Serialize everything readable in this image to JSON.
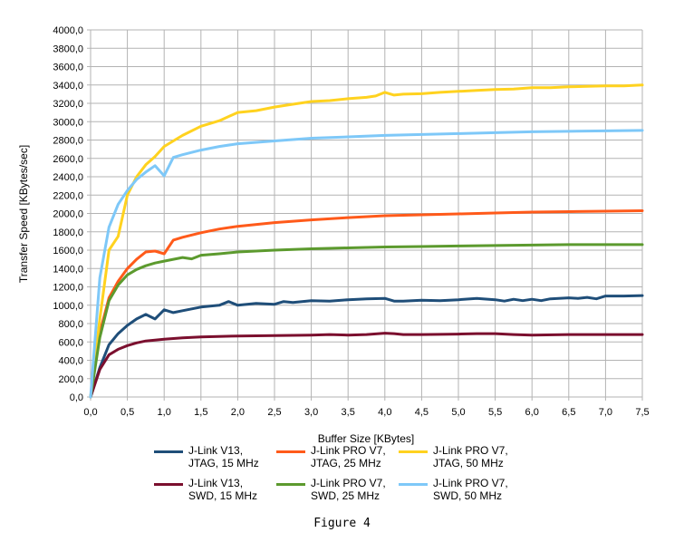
{
  "chart_data": {
    "type": "line",
    "xlabel": "Buffer Size [KBytes]",
    "ylabel": "Transfer Speed [KBytes/sec]",
    "xlim": [
      0,
      7.5
    ],
    "ylim": [
      0,
      4000
    ],
    "xticks": [
      0,
      0.5,
      1.0,
      1.5,
      2.0,
      2.5,
      3.0,
      3.5,
      4.0,
      4.5,
      5.0,
      5.5,
      6.0,
      6.5,
      7.0,
      7.5
    ],
    "xtick_labels": [
      "0,0",
      "0,5",
      "1,0",
      "1,5",
      "2,0",
      "2,5",
      "3,0",
      "3,5",
      "4,0",
      "4,5",
      "5,0",
      "5,5",
      "6,0",
      "6,5",
      "7,0",
      "7,5"
    ],
    "yticks": [
      0,
      200,
      400,
      600,
      800,
      1000,
      1200,
      1400,
      1600,
      1800,
      2000,
      2200,
      2400,
      2600,
      2800,
      3000,
      3200,
      3400,
      3600,
      3800,
      4000
    ],
    "ytick_labels": [
      "0,0",
      "200,0",
      "400,0",
      "600,0",
      "800,0",
      "1000,0",
      "1200,0",
      "1400,0",
      "1600,0",
      "1800,0",
      "2000,0",
      "2200,0",
      "2400,0",
      "2600,0",
      "2800,0",
      "3000,0",
      "3200,0",
      "3400,0",
      "3600,0",
      "3800,0",
      "4000,0"
    ],
    "grid": true,
    "legend_position": "bottom",
    "series": [
      {
        "name": "J-Link V13,\nJTAG, 15 MHz",
        "color": "#1f4e79",
        "points": [
          [
            0,
            0
          ],
          [
            0.125,
            320
          ],
          [
            0.25,
            570
          ],
          [
            0.375,
            690
          ],
          [
            0.5,
            780
          ],
          [
            0.625,
            850
          ],
          [
            0.75,
            900
          ],
          [
            0.875,
            850
          ],
          [
            1.0,
            950
          ],
          [
            1.125,
            920
          ],
          [
            1.25,
            940
          ],
          [
            1.5,
            980
          ],
          [
            1.75,
            1000
          ],
          [
            1.875,
            1040
          ],
          [
            2.0,
            1000
          ],
          [
            2.25,
            1020
          ],
          [
            2.5,
            1010
          ],
          [
            2.625,
            1040
          ],
          [
            2.75,
            1030
          ],
          [
            3.0,
            1050
          ],
          [
            3.25,
            1045
          ],
          [
            3.5,
            1060
          ],
          [
            3.75,
            1070
          ],
          [
            4.0,
            1075
          ],
          [
            4.125,
            1045
          ],
          [
            4.25,
            1045
          ],
          [
            4.5,
            1055
          ],
          [
            4.75,
            1050
          ],
          [
            5.0,
            1060
          ],
          [
            5.25,
            1075
          ],
          [
            5.5,
            1060
          ],
          [
            5.625,
            1045
          ],
          [
            5.75,
            1065
          ],
          [
            5.875,
            1050
          ],
          [
            6.0,
            1065
          ],
          [
            6.125,
            1050
          ],
          [
            6.25,
            1070
          ],
          [
            6.5,
            1080
          ],
          [
            6.625,
            1075
          ],
          [
            6.75,
            1085
          ],
          [
            6.875,
            1070
          ],
          [
            7.0,
            1100
          ],
          [
            7.25,
            1100
          ],
          [
            7.5,
            1105
          ]
        ]
      },
      {
        "name": "J-Link PRO V7,\nJTAG, 25 MHz",
        "color": "#ff5a1a",
        "points": [
          [
            0,
            0
          ],
          [
            0.125,
            700
          ],
          [
            0.25,
            1080
          ],
          [
            0.375,
            1260
          ],
          [
            0.5,
            1400
          ],
          [
            0.625,
            1500
          ],
          [
            0.75,
            1580
          ],
          [
            0.875,
            1590
          ],
          [
            1.0,
            1560
          ],
          [
            1.125,
            1710
          ],
          [
            1.25,
            1740
          ],
          [
            1.5,
            1790
          ],
          [
            1.75,
            1830
          ],
          [
            2.0,
            1860
          ],
          [
            2.5,
            1900
          ],
          [
            3.0,
            1930
          ],
          [
            3.5,
            1955
          ],
          [
            4.0,
            1975
          ],
          [
            4.5,
            1985
          ],
          [
            5.0,
            1995
          ],
          [
            5.5,
            2005
          ],
          [
            6.0,
            2015
          ],
          [
            6.5,
            2020
          ],
          [
            7.0,
            2025
          ],
          [
            7.5,
            2030
          ]
        ]
      },
      {
        "name": "J-Link PRO V7,\nJTAG, 50 MHz",
        "color": "#ffd21f",
        "points": [
          [
            0,
            0
          ],
          [
            0.125,
            850
          ],
          [
            0.25,
            1600
          ],
          [
            0.375,
            1750
          ],
          [
            0.5,
            2200
          ],
          [
            0.625,
            2400
          ],
          [
            0.75,
            2530
          ],
          [
            0.875,
            2620
          ],
          [
            1.0,
            2730
          ],
          [
            1.125,
            2790
          ],
          [
            1.25,
            2850
          ],
          [
            1.5,
            2950
          ],
          [
            1.75,
            3010
          ],
          [
            2.0,
            3100
          ],
          [
            2.25,
            3120
          ],
          [
            2.5,
            3160
          ],
          [
            2.75,
            3190
          ],
          [
            3.0,
            3220
          ],
          [
            3.25,
            3230
          ],
          [
            3.5,
            3250
          ],
          [
            3.75,
            3265
          ],
          [
            3.875,
            3280
          ],
          [
            4.0,
            3320
          ],
          [
            4.125,
            3290
          ],
          [
            4.25,
            3300
          ],
          [
            4.5,
            3305
          ],
          [
            4.75,
            3320
          ],
          [
            5.0,
            3330
          ],
          [
            5.25,
            3340
          ],
          [
            5.5,
            3350
          ],
          [
            5.75,
            3355
          ],
          [
            6.0,
            3370
          ],
          [
            6.25,
            3370
          ],
          [
            6.5,
            3380
          ],
          [
            6.75,
            3385
          ],
          [
            7.0,
            3390
          ],
          [
            7.25,
            3390
          ],
          [
            7.5,
            3400
          ]
        ]
      },
      {
        "name": "J-Link V13,\nSWD, 15 MHz",
        "color": "#7b0f2e",
        "points": [
          [
            0,
            0
          ],
          [
            0.125,
            300
          ],
          [
            0.25,
            460
          ],
          [
            0.375,
            520
          ],
          [
            0.5,
            560
          ],
          [
            0.625,
            590
          ],
          [
            0.75,
            610
          ],
          [
            1.0,
            630
          ],
          [
            1.25,
            645
          ],
          [
            1.5,
            655
          ],
          [
            2.0,
            665
          ],
          [
            2.5,
            670
          ],
          [
            3.0,
            675
          ],
          [
            3.25,
            680
          ],
          [
            3.5,
            675
          ],
          [
            3.75,
            680
          ],
          [
            4.0,
            695
          ],
          [
            4.125,
            690
          ],
          [
            4.25,
            680
          ],
          [
            4.5,
            680
          ],
          [
            5.0,
            685
          ],
          [
            5.25,
            690
          ],
          [
            5.5,
            690
          ],
          [
            5.75,
            680
          ],
          [
            6.0,
            675
          ],
          [
            6.5,
            680
          ],
          [
            7.0,
            680
          ],
          [
            7.5,
            680
          ]
        ]
      },
      {
        "name": "J-Link PRO V7,\nSWD, 25 MHz",
        "color": "#5c9a2e",
        "points": [
          [
            0,
            0
          ],
          [
            0.125,
            650
          ],
          [
            0.25,
            1050
          ],
          [
            0.375,
            1220
          ],
          [
            0.5,
            1330
          ],
          [
            0.625,
            1390
          ],
          [
            0.75,
            1430
          ],
          [
            0.875,
            1460
          ],
          [
            1.0,
            1480
          ],
          [
            1.125,
            1500
          ],
          [
            1.25,
            1520
          ],
          [
            1.375,
            1505
          ],
          [
            1.5,
            1545
          ],
          [
            1.75,
            1560
          ],
          [
            2.0,
            1580
          ],
          [
            2.5,
            1600
          ],
          [
            3.0,
            1615
          ],
          [
            3.5,
            1625
          ],
          [
            4.0,
            1635
          ],
          [
            4.5,
            1640
          ],
          [
            5.0,
            1645
          ],
          [
            5.5,
            1650
          ],
          [
            6.0,
            1655
          ],
          [
            6.5,
            1660
          ],
          [
            7.0,
            1660
          ],
          [
            7.5,
            1660
          ]
        ]
      },
      {
        "name": "J-Link PRO V7,\nSWD, 50 MHz",
        "color": "#7ec8f8",
        "points": [
          [
            0,
            0
          ],
          [
            0.125,
            1300
          ],
          [
            0.25,
            1850
          ],
          [
            0.375,
            2100
          ],
          [
            0.5,
            2250
          ],
          [
            0.625,
            2370
          ],
          [
            0.75,
            2450
          ],
          [
            0.875,
            2520
          ],
          [
            1.0,
            2410
          ],
          [
            1.125,
            2610
          ],
          [
            1.25,
            2640
          ],
          [
            1.5,
            2690
          ],
          [
            1.75,
            2730
          ],
          [
            2.0,
            2760
          ],
          [
            2.5,
            2790
          ],
          [
            3.0,
            2820
          ],
          [
            3.5,
            2835
          ],
          [
            4.0,
            2850
          ],
          [
            4.5,
            2860
          ],
          [
            5.0,
            2870
          ],
          [
            5.5,
            2880
          ],
          [
            6.0,
            2890
          ],
          [
            6.5,
            2895
          ],
          [
            7.0,
            2900
          ],
          [
            7.5,
            2905
          ]
        ]
      }
    ]
  },
  "caption": "Figure 4"
}
